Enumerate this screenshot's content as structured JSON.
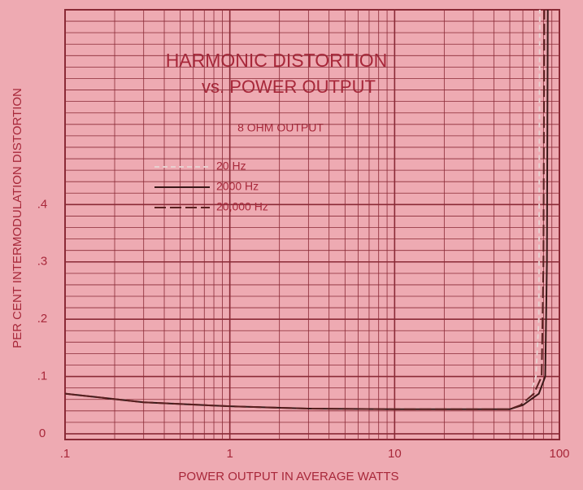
{
  "chart_data": {
    "type": "line",
    "title": "HARMONIC DISTORTION",
    "subtitle": "vs. POWER OUTPUT",
    "annotation": "8 OHM OUTPUT",
    "x_label": "POWER OUTPUT IN AVERAGE WATTS",
    "y_label": "PER CENT INTERMODULATION DISTORTION",
    "log_x": true,
    "grid": true,
    "xlim": [
      0.1,
      100
    ],
    "ylim": [
      -0.01,
      0.74
    ],
    "xticks": [
      {
        "value": 0.1,
        "label": ".1"
      },
      1,
      10,
      100
    ],
    "yticks": [
      0,
      {
        "value": 0.1,
        "label": ".1"
      },
      {
        "value": 0.2,
        "label": ".2"
      },
      {
        "value": 0.3,
        "label": ".3"
      },
      {
        "value": 0.4,
        "label": ".4"
      }
    ],
    "minor_xticks": [
      0.2,
      0.3,
      0.4,
      0.5,
      0.6,
      0.7,
      0.8,
      0.9,
      2,
      3,
      4,
      5,
      6,
      7,
      8,
      9,
      20,
      30,
      40,
      50,
      60,
      70,
      80,
      90
    ],
    "minor_yticks": [
      0.02,
      0.04,
      0.06,
      0.08,
      0.12,
      0.14,
      0.16,
      0.18,
      0.22,
      0.24,
      0.26,
      0.28,
      0.32,
      0.34,
      0.36,
      0.38,
      0.42,
      0.44,
      0.46,
      0.48,
      0.5,
      0.52,
      0.54,
      0.56,
      0.58,
      0.6,
      0.62,
      0.64,
      0.66,
      0.68,
      0.7,
      0.72
    ],
    "series": [
      {
        "name": "20 Hz",
        "color": "#e8d0d0",
        "dash": "6,4",
        "x": [
          0.1,
          0.3,
          1,
          3,
          10,
          30,
          50,
          55,
          65,
          72,
          75,
          76
        ],
        "values": [
          0.07,
          0.055,
          0.048,
          0.044,
          0.043,
          0.043,
          0.043,
          0.045,
          0.06,
          0.1,
          0.2,
          0.74
        ]
      },
      {
        "name": "2000 Hz",
        "color": "#3a1818",
        "dash": "none",
        "x": [
          0.1,
          0.3,
          1,
          3,
          10,
          30,
          50,
          60,
          75,
          82,
          84,
          85
        ],
        "values": [
          0.07,
          0.055,
          0.048,
          0.044,
          0.043,
          0.043,
          0.043,
          0.05,
          0.07,
          0.1,
          0.3,
          0.74
        ]
      },
      {
        "name": "20,000 Hz",
        "color": "#5a2020",
        "dash": "14,5",
        "x": [
          0.1,
          0.3,
          1,
          3,
          10,
          30,
          50,
          58,
          70,
          78,
          80,
          81
        ],
        "values": [
          0.07,
          0.055,
          0.048,
          0.044,
          0.043,
          0.043,
          0.043,
          0.05,
          0.07,
          0.1,
          0.3,
          0.74
        ]
      }
    ]
  }
}
